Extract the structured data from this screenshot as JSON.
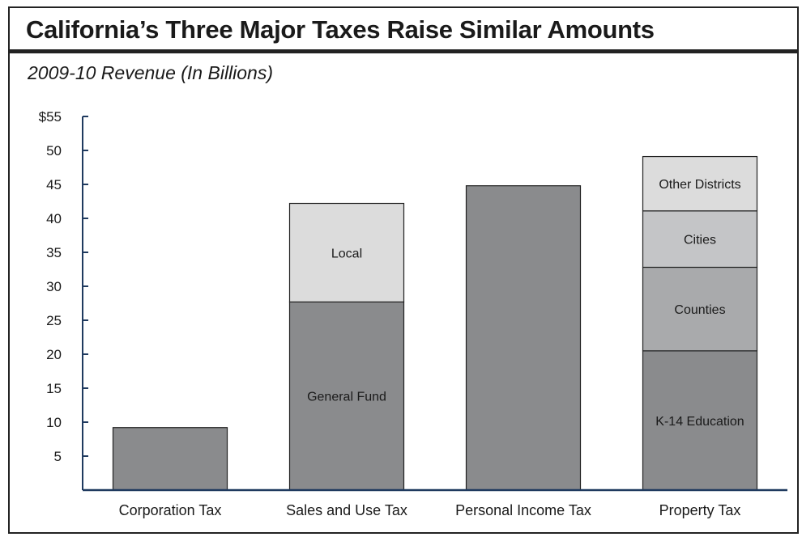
{
  "title": "California’s Three Major Taxes Raise Similar Amounts",
  "subtitle": "2009-10 Revenue (In Billions)",
  "colors": {
    "dark": "#8a8b8d",
    "medium": "#a9aaac",
    "light": "#c4c5c7",
    "lightest": "#dcdcdc",
    "axis": "#1f3a5f"
  },
  "chart_data": {
    "type": "bar",
    "stacked": true,
    "title": "California’s Three Major Taxes Raise Similar Amounts",
    "subtitle": "2009-10 Revenue (In Billions)",
    "xlabel": "",
    "ylabel": "",
    "ylim": [
      0,
      55
    ],
    "yticks": [
      5,
      10,
      15,
      20,
      25,
      30,
      35,
      40,
      45,
      50,
      55
    ],
    "ytick_labels": [
      "5",
      "10",
      "15",
      "20",
      "25",
      "30",
      "35",
      "40",
      "45",
      "50",
      "$55"
    ],
    "categories": [
      "Corporation Tax",
      "Sales and Use Tax",
      "Personal Income Tax",
      "Property Tax"
    ],
    "bars": [
      {
        "category": "Corporation Tax",
        "segments": [
          {
            "label": "",
            "value": 9.2,
            "shade": "dark"
          }
        ]
      },
      {
        "category": "Sales and Use Tax",
        "segments": [
          {
            "label": "General Fund",
            "value": 27.7,
            "shade": "dark"
          },
          {
            "label": "Local",
            "value": 14.5,
            "shade": "lightest"
          }
        ]
      },
      {
        "category": "Personal Income Tax",
        "segments": [
          {
            "label": "",
            "value": 44.8,
            "shade": "dark"
          }
        ]
      },
      {
        "category": "Property Tax",
        "segments": [
          {
            "label": "K-14 Education",
            "value": 20.5,
            "shade": "dark"
          },
          {
            "label": "Counties",
            "value": 12.3,
            "shade": "medium"
          },
          {
            "label": "Cities",
            "value": 8.3,
            "shade": "light"
          },
          {
            "label": "Other Districts",
            "value": 8.0,
            "shade": "lightest"
          }
        ]
      }
    ],
    "grid": false,
    "legend": "none"
  }
}
